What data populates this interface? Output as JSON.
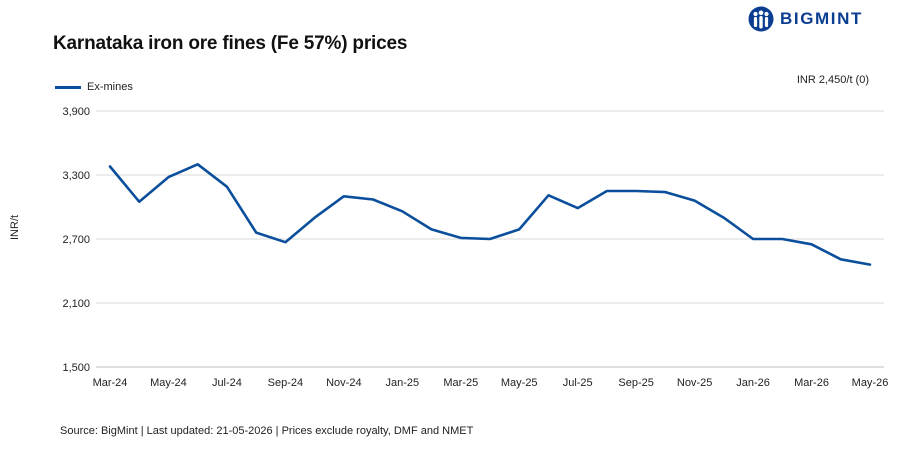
{
  "brand": {
    "name": "BIGMINT",
    "color": "#0B3D91",
    "icon": "bigmint-people-icon"
  },
  "chart_data": {
    "type": "line",
    "title": "Karnataka iron ore fines (Fe 57%) prices",
    "ylabel": "INR/t",
    "xlabel": "",
    "ylim": [
      1500,
      3900
    ],
    "yticks": [
      "3,900",
      "3,300",
      "2,700",
      "2,100",
      "1,500"
    ],
    "ytick_values": [
      3900,
      3300,
      2700,
      2100,
      1500
    ],
    "grid": true,
    "legend_position": "top-left",
    "annotation": "INR 2,450/t (0)",
    "source": "Source: BigMint | Last updated: 21-05-2026 | Prices exclude royalty, DMF and NMET",
    "x_labels": [
      "Mar-24",
      "May-24",
      "Jul-24",
      "Sep-24",
      "Nov-24",
      "Jan-25",
      "Mar-25",
      "May-25",
      "Jul-25",
      "Sep-25",
      "Nov-25",
      "Jan-26",
      "Mar-26",
      "May-26"
    ],
    "x": [
      "Mar-24",
      "Apr-24",
      "May-24",
      "Jun-24",
      "Jul-24",
      "Aug-24",
      "Sep-24",
      "Oct-24",
      "Nov-24",
      "Dec-24",
      "Jan-25",
      "Feb-25",
      "Mar-25",
      "Apr-25",
      "May-25",
      "Jun-25",
      "Jul-25",
      "Aug-25",
      "Sep-25",
      "Oct-25",
      "Nov-25",
      "Dec-25",
      "Jan-26",
      "Feb-26",
      "Mar-26",
      "Apr-26",
      "May-26"
    ],
    "series": [
      {
        "name": "Ex-mines",
        "color": "#0B4F9C",
        "values": [
          3380,
          3050,
          3280,
          3400,
          3190,
          2760,
          2670,
          2900,
          3100,
          3070,
          2960,
          2790,
          2710,
          2700,
          2790,
          3110,
          2990,
          3150,
          3150,
          3140,
          3060,
          2900,
          2700,
          2700,
          2650,
          2510,
          2460
        ]
      }
    ]
  }
}
